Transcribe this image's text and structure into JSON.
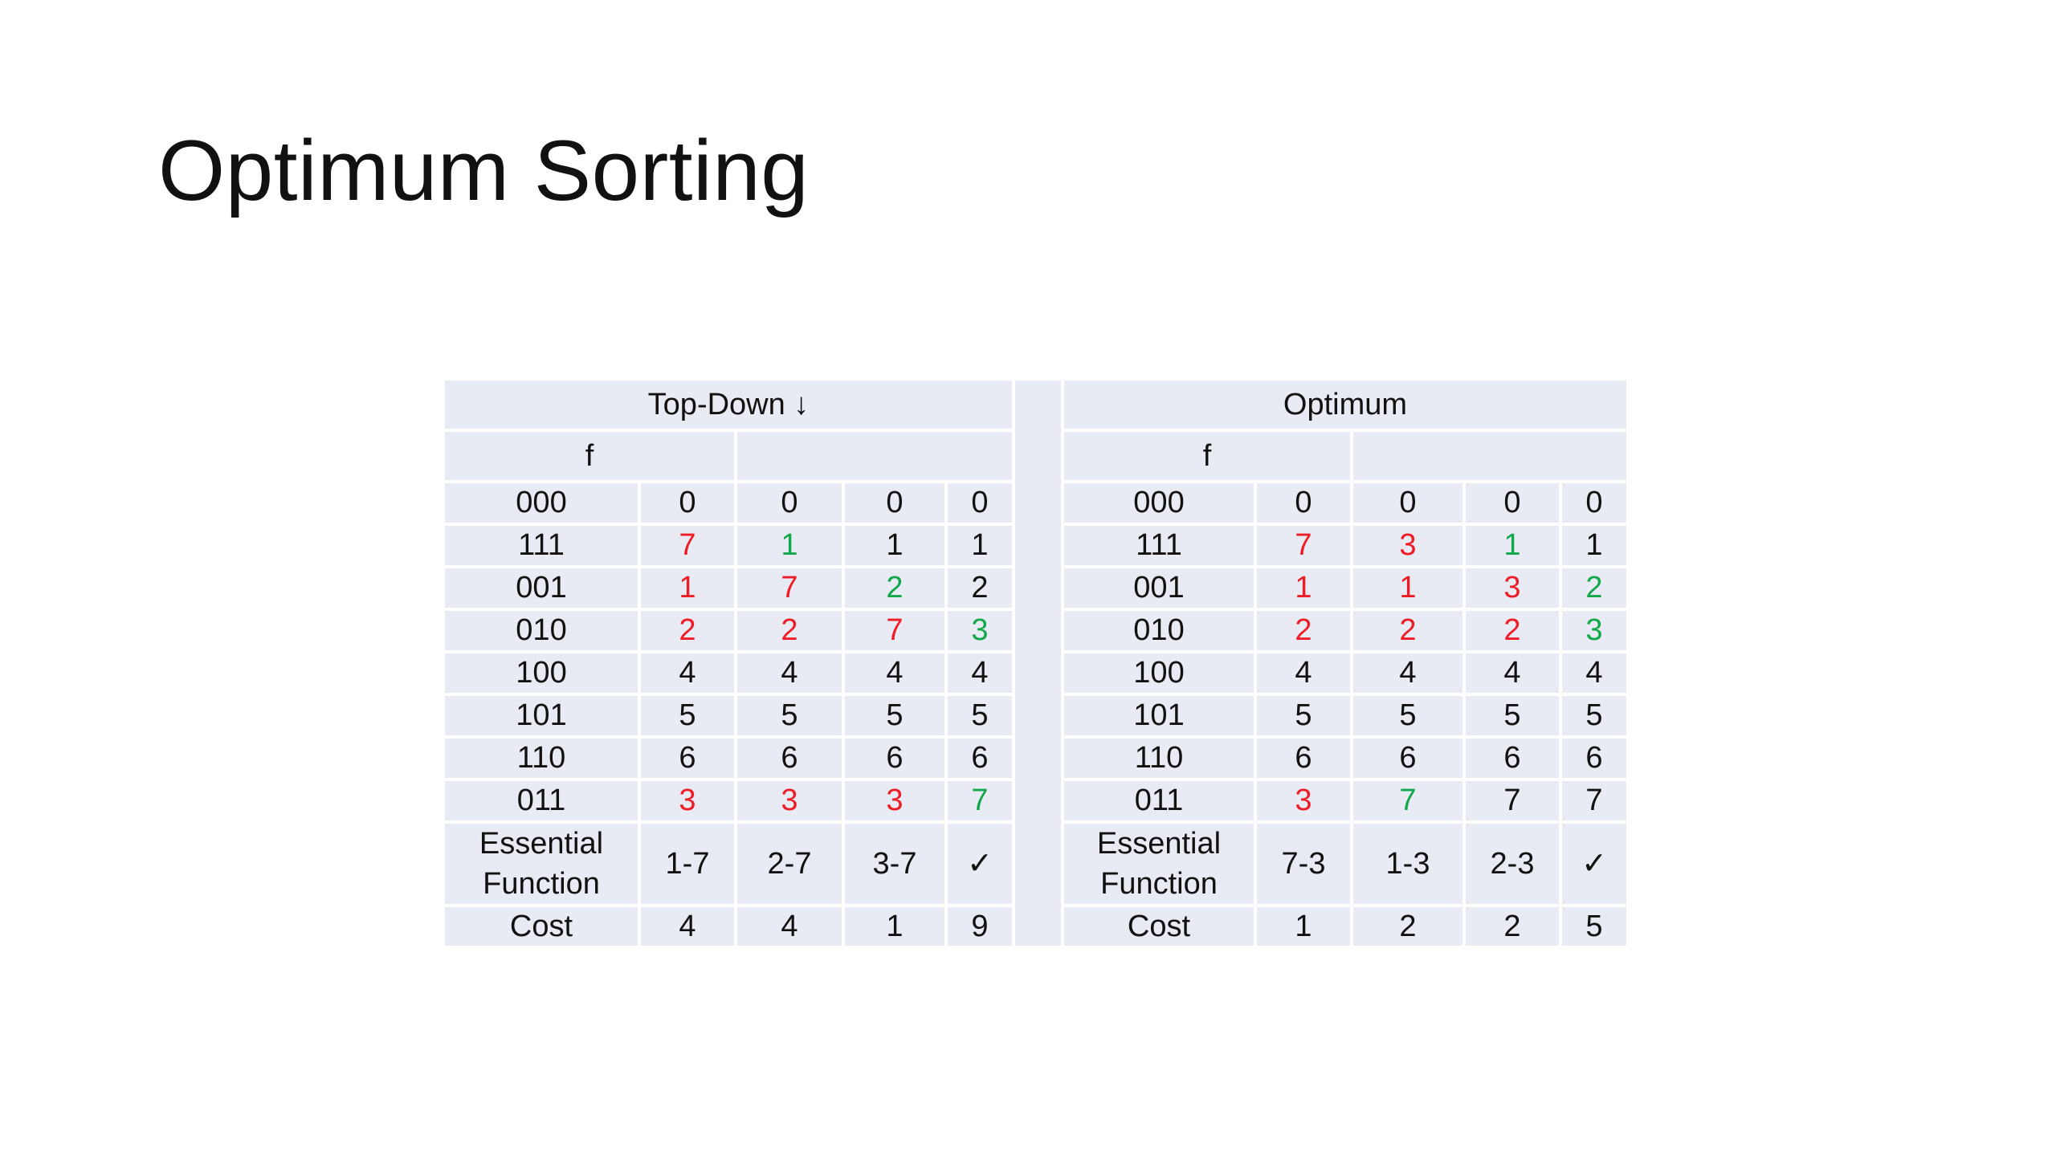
{
  "slide": {
    "title": "Optimum Sorting"
  },
  "table": {
    "left": {
      "header": "Top-Down ↓",
      "f_label": "f",
      "rows": [
        {
          "label": "000",
          "cells": [
            {
              "v": "0",
              "c": "black"
            },
            {
              "v": "0",
              "c": "black"
            },
            {
              "v": "0",
              "c": "black"
            },
            {
              "v": "0",
              "c": "black"
            }
          ]
        },
        {
          "label": "111",
          "cells": [
            {
              "v": "7",
              "c": "red"
            },
            {
              "v": "1",
              "c": "green"
            },
            {
              "v": "1",
              "c": "black"
            },
            {
              "v": "1",
              "c": "black"
            }
          ]
        },
        {
          "label": "001",
          "cells": [
            {
              "v": "1",
              "c": "red"
            },
            {
              "v": "7",
              "c": "red"
            },
            {
              "v": "2",
              "c": "green"
            },
            {
              "v": "2",
              "c": "black"
            }
          ]
        },
        {
          "label": "010",
          "cells": [
            {
              "v": "2",
              "c": "red"
            },
            {
              "v": "2",
              "c": "red"
            },
            {
              "v": "7",
              "c": "red"
            },
            {
              "v": "3",
              "c": "green"
            }
          ]
        },
        {
          "label": "100",
          "cells": [
            {
              "v": "4",
              "c": "black"
            },
            {
              "v": "4",
              "c": "black"
            },
            {
              "v": "4",
              "c": "black"
            },
            {
              "v": "4",
              "c": "black"
            }
          ]
        },
        {
          "label": "101",
          "cells": [
            {
              "v": "5",
              "c": "black"
            },
            {
              "v": "5",
              "c": "black"
            },
            {
              "v": "5",
              "c": "black"
            },
            {
              "v": "5",
              "c": "black"
            }
          ]
        },
        {
          "label": "110",
          "cells": [
            {
              "v": "6",
              "c": "black"
            },
            {
              "v": "6",
              "c": "black"
            },
            {
              "v": "6",
              "c": "black"
            },
            {
              "v": "6",
              "c": "black"
            }
          ]
        },
        {
          "label": "011",
          "cells": [
            {
              "v": "3",
              "c": "red"
            },
            {
              "v": "3",
              "c": "red"
            },
            {
              "v": "3",
              "c": "red"
            },
            {
              "v": "7",
              "c": "green"
            }
          ]
        }
      ],
      "essential_label_1": "Essential",
      "essential_label_2": "Function",
      "essential_values": [
        "1-7",
        "2-7",
        "3-7",
        "✓"
      ],
      "cost_label": "Cost",
      "cost_values": [
        "4",
        "4",
        "1",
        "9"
      ]
    },
    "right": {
      "header": "Optimum",
      "f_label": "f",
      "rows": [
        {
          "label": "000",
          "cells": [
            {
              "v": "0",
              "c": "black"
            },
            {
              "v": "0",
              "c": "black"
            },
            {
              "v": "0",
              "c": "black"
            },
            {
              "v": "0",
              "c": "black"
            }
          ]
        },
        {
          "label": "111",
          "cells": [
            {
              "v": "7",
              "c": "red"
            },
            {
              "v": "3",
              "c": "red"
            },
            {
              "v": "1",
              "c": "green"
            },
            {
              "v": "1",
              "c": "black"
            }
          ]
        },
        {
          "label": "001",
          "cells": [
            {
              "v": "1",
              "c": "red"
            },
            {
              "v": "1",
              "c": "red"
            },
            {
              "v": "3",
              "c": "red"
            },
            {
              "v": "2",
              "c": "green"
            }
          ]
        },
        {
          "label": "010",
          "cells": [
            {
              "v": "2",
              "c": "red"
            },
            {
              "v": "2",
              "c": "red"
            },
            {
              "v": "2",
              "c": "red"
            },
            {
              "v": "3",
              "c": "green"
            }
          ]
        },
        {
          "label": "100",
          "cells": [
            {
              "v": "4",
              "c": "black"
            },
            {
              "v": "4",
              "c": "black"
            },
            {
              "v": "4",
              "c": "black"
            },
            {
              "v": "4",
              "c": "black"
            }
          ]
        },
        {
          "label": "101",
          "cells": [
            {
              "v": "5",
              "c": "black"
            },
            {
              "v": "5",
              "c": "black"
            },
            {
              "v": "5",
              "c": "black"
            },
            {
              "v": "5",
              "c": "black"
            }
          ]
        },
        {
          "label": "110",
          "cells": [
            {
              "v": "6",
              "c": "black"
            },
            {
              "v": "6",
              "c": "black"
            },
            {
              "v": "6",
              "c": "black"
            },
            {
              "v": "6",
              "c": "black"
            }
          ]
        },
        {
          "label": "011",
          "cells": [
            {
              "v": "3",
              "c": "red"
            },
            {
              "v": "7",
              "c": "green"
            },
            {
              "v": "7",
              "c": "black"
            },
            {
              "v": "7",
              "c": "black"
            }
          ]
        }
      ],
      "essential_label_1": "Essential",
      "essential_label_2": "Function",
      "essential_values": [
        "7-3",
        "1-3",
        "2-3",
        "✓"
      ],
      "cost_label": "Cost",
      "cost_values": [
        "1",
        "2",
        "2",
        "5"
      ]
    }
  },
  "colors": {
    "cell_background": "#e8eaf4",
    "red": "#ee1c24",
    "green": "#11a84a",
    "text": "#111111"
  }
}
